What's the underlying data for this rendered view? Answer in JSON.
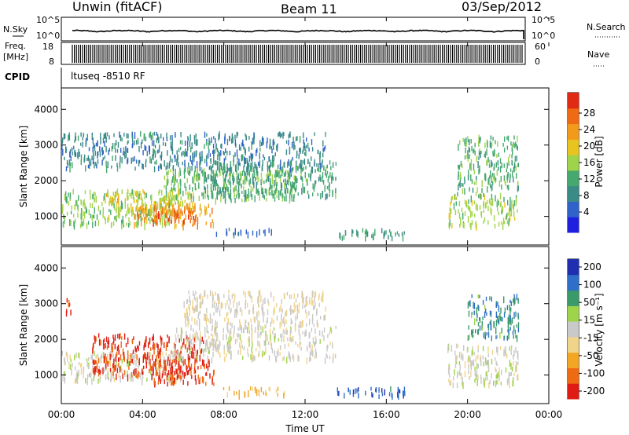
{
  "header": {
    "radar": "Unwin (fitACF)",
    "beam": "Beam 11",
    "date": "03/Sep/2012"
  },
  "summary_panels": {
    "nsky": {
      "label": "N.Sky",
      "ticks": [
        "10^5",
        "10^0"
      ]
    },
    "nsearch": {
      "label": "N.Search",
      "ticks": [
        "10^5",
        "10^0"
      ]
    },
    "freq": {
      "label_line1": "Freq.",
      "label_line2": "[MHz]",
      "ticks": [
        "18",
        "8"
      ]
    },
    "nave": {
      "label": "Nave",
      "ticks": [
        "60",
        "0"
      ]
    },
    "cpid": {
      "label": "CPID",
      "value": "ltuseq -8510 RF"
    }
  },
  "colors": {
    "power_scale": [
      "#1f1fe0",
      "#2f63c9",
      "#3a8a86",
      "#45a86e",
      "#9fd44a",
      "#e8c421",
      "#f29a1a",
      "#ef6a12",
      "#e02a14"
    ],
    "velocity_scale": [
      "#e01b14",
      "#ef6b12",
      "#f2a624",
      "#f0d48a",
      "#c9c9c9",
      "#9fd44a",
      "#3a9a6a",
      "#2f6fc9",
      "#1f2fb0"
    ],
    "ground_scatter": "#c8c8c8"
  },
  "chart_data": [
    {
      "type": "heatmap",
      "title": "Power",
      "xlabel": "Time UT",
      "ylabel": "Slant Range [km]",
      "x_tick_labels": [
        "00:00",
        "04:00",
        "08:00",
        "12:00",
        "16:00",
        "20:00",
        "00:00"
      ],
      "xlim_hours": [
        0,
        24
      ],
      "ylim": [
        200,
        4600
      ],
      "y_tick_labels": [
        "1000",
        "2000",
        "3000",
        "4000"
      ],
      "colorbar_label": "Power [dB]",
      "colorbar_ticks": [
        "28",
        "24",
        "20",
        "16",
        "12",
        "8",
        "4"
      ],
      "colorbar_range": [
        0,
        30
      ],
      "echo_regions": [
        {
          "t0": 0.0,
          "t1": 5.5,
          "r0": 700,
          "r1": 1700,
          "level": 14
        },
        {
          "t0": 2.0,
          "t1": 6.5,
          "r0": 1100,
          "r1": 1700,
          "level": 18
        },
        {
          "t0": 3.5,
          "t1": 7.5,
          "r0": 700,
          "r1": 1300,
          "level": 22
        },
        {
          "t0": 4.5,
          "t1": 6.8,
          "r0": 800,
          "r1": 1100,
          "level": 26
        },
        {
          "t0": 5.0,
          "t1": 11.5,
          "r0": 1400,
          "r1": 2300,
          "level": 13
        },
        {
          "t0": 7.0,
          "t1": 13.5,
          "r0": 1500,
          "r1": 2500,
          "level": 11
        },
        {
          "t0": 7.5,
          "t1": 10.5,
          "r0": 450,
          "r1": 600,
          "level": 6
        },
        {
          "t0": 13.5,
          "t1": 17.0,
          "r0": 350,
          "r1": 600,
          "level": 10
        },
        {
          "t0": 19.0,
          "t1": 22.5,
          "r0": 700,
          "r1": 1600,
          "level": 15
        },
        {
          "t0": 19.5,
          "t1": 22.5,
          "r0": 1700,
          "r1": 3200,
          "level": 12
        },
        {
          "t0": 0.0,
          "t1": 13.0,
          "r0": 2300,
          "r1": 3300,
          "level": 8
        }
      ]
    },
    {
      "type": "heatmap",
      "title": "Velocity",
      "xlabel": "Time UT",
      "ylabel": "Slant Range [km]",
      "x_tick_labels": [
        "00:00",
        "04:00",
        "08:00",
        "12:00",
        "16:00",
        "20:00",
        "00:00"
      ],
      "xlim_hours": [
        0,
        24
      ],
      "ylim": [
        200,
        4600
      ],
      "y_tick_labels": [
        "1000",
        "2000",
        "3000",
        "4000"
      ],
      "colorbar_label": "Velocity [m s⁻¹]",
      "colorbar_ticks": [
        "200",
        "100",
        "50",
        "15",
        "-15",
        "-50",
        "-100",
        "-200"
      ],
      "colorbar_range": [
        -250,
        250
      ],
      "echo_regions": [
        {
          "t0": 0.0,
          "t1": 6.0,
          "r0": 800,
          "r1": 1600,
          "level": 0
        },
        {
          "t0": 1.5,
          "t1": 7.0,
          "r0": 900,
          "r1": 2100,
          "level": -210
        },
        {
          "t0": 4.5,
          "t1": 7.5,
          "r0": 700,
          "r1": 1400,
          "level": -200
        },
        {
          "t0": 5.5,
          "t1": 13.5,
          "r0": 1400,
          "r1": 2300,
          "level": -5
        },
        {
          "t0": 7.5,
          "t1": 11.0,
          "r0": 400,
          "r1": 600,
          "level": -90
        },
        {
          "t0": 13.5,
          "t1": 17.0,
          "r0": 350,
          "r1": 600,
          "level": 180
        },
        {
          "t0": 19.0,
          "t1": 22.5,
          "r0": 700,
          "r1": 1800,
          "level": 0
        },
        {
          "t0": 20.0,
          "t1": 22.5,
          "r0": 2000,
          "r1": 3200,
          "level": 120
        },
        {
          "t0": 0.2,
          "t1": 0.6,
          "r0": 2700,
          "r1": 3100,
          "level": -200
        },
        {
          "t0": 6.0,
          "t1": 13.0,
          "r0": 2300,
          "r1": 3300,
          "level": -20
        }
      ]
    }
  ]
}
